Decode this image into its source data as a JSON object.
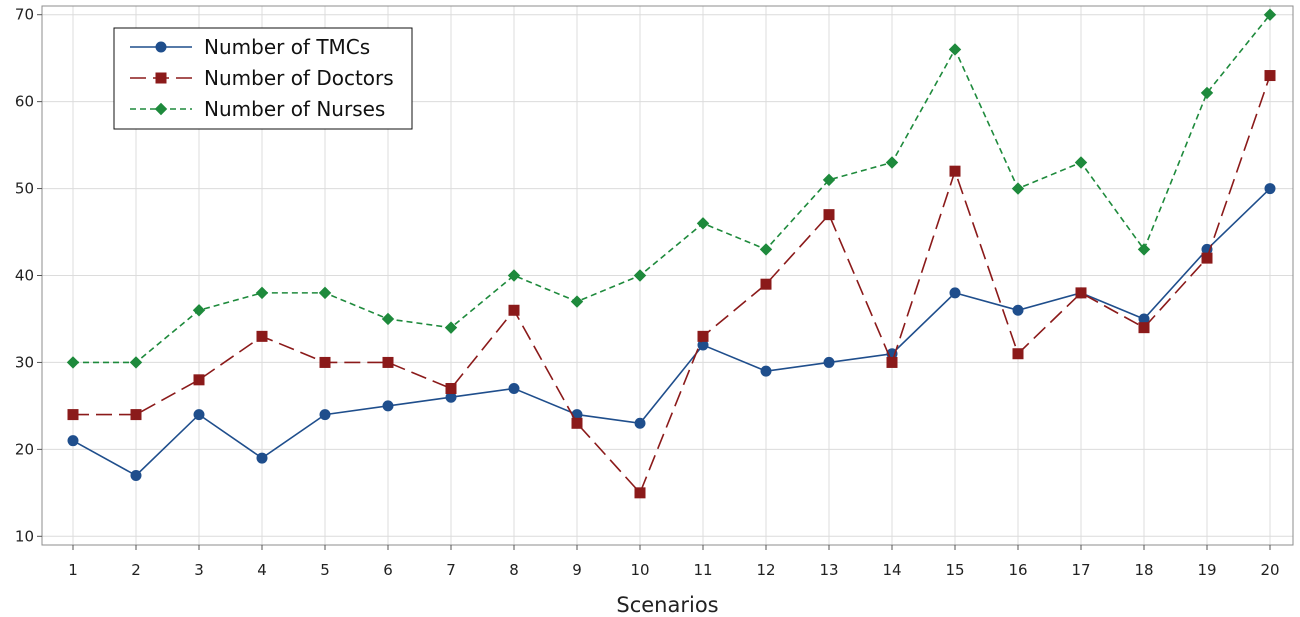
{
  "chart_data": {
    "type": "line",
    "title": "",
    "xlabel": "Scenarios",
    "ylabel": "",
    "x": [
      1,
      2,
      3,
      4,
      5,
      6,
      7,
      8,
      9,
      10,
      11,
      12,
      13,
      14,
      15,
      16,
      17,
      18,
      19,
      20
    ],
    "ylim": [
      9,
      71
    ],
    "yticks": [
      10,
      20,
      30,
      40,
      50,
      60,
      70
    ],
    "grid": true,
    "legend_position": "top-left",
    "series": [
      {
        "name": "Number of TMCs",
        "color": "#1f4e8c",
        "line_style": "solid",
        "marker": "circle",
        "values": [
          21,
          17,
          24,
          19,
          24,
          25,
          26,
          27,
          24,
          23,
          32,
          29,
          30,
          31,
          38,
          36,
          38,
          35,
          43,
          50
        ]
      },
      {
        "name": "Number of Doctors",
        "color": "#8b1a1a",
        "line_style": "long-dash",
        "marker": "square",
        "values": [
          24,
          24,
          28,
          33,
          30,
          30,
          27,
          36,
          23,
          15,
          33,
          39,
          47,
          30,
          52,
          31,
          38,
          34,
          42,
          63
        ]
      },
      {
        "name": "Number of Nurses",
        "color": "#1e8a3c",
        "line_style": "short-dash",
        "marker": "diamond",
        "values": [
          30,
          30,
          36,
          38,
          38,
          35,
          34,
          40,
          37,
          40,
          46,
          43,
          51,
          53,
          66,
          50,
          53,
          43,
          61,
          70
        ]
      }
    ]
  }
}
